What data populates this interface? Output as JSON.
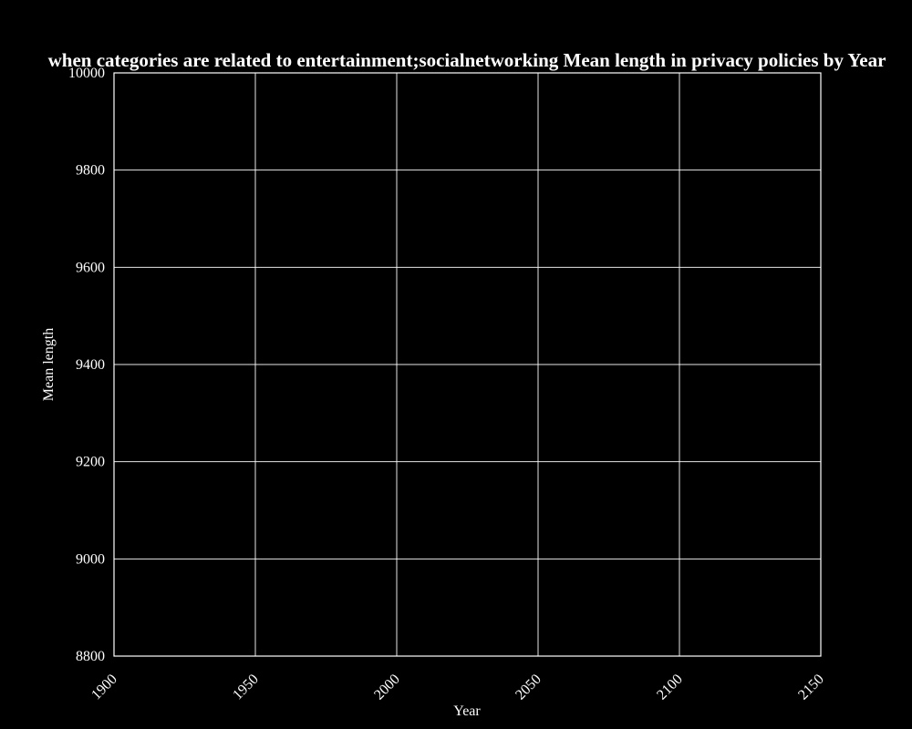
{
  "chart_data": {
    "type": "line",
    "title": "when categories are related to entertainment;socialnetworking Mean length in privacy policies by Year",
    "xlabel": "Year",
    "ylabel": "Mean length",
    "xlim": [
      1900,
      2150
    ],
    "ylim": [
      8800,
      10000
    ],
    "xticks": [
      1900,
      1950,
      2000,
      2050,
      2100,
      2150
    ],
    "yticks": [
      8800,
      9000,
      9200,
      9400,
      9600,
      9800,
      10000
    ],
    "grid": true,
    "series": [],
    "colors": {
      "background": "#000000",
      "foreground": "#ffffff"
    }
  }
}
